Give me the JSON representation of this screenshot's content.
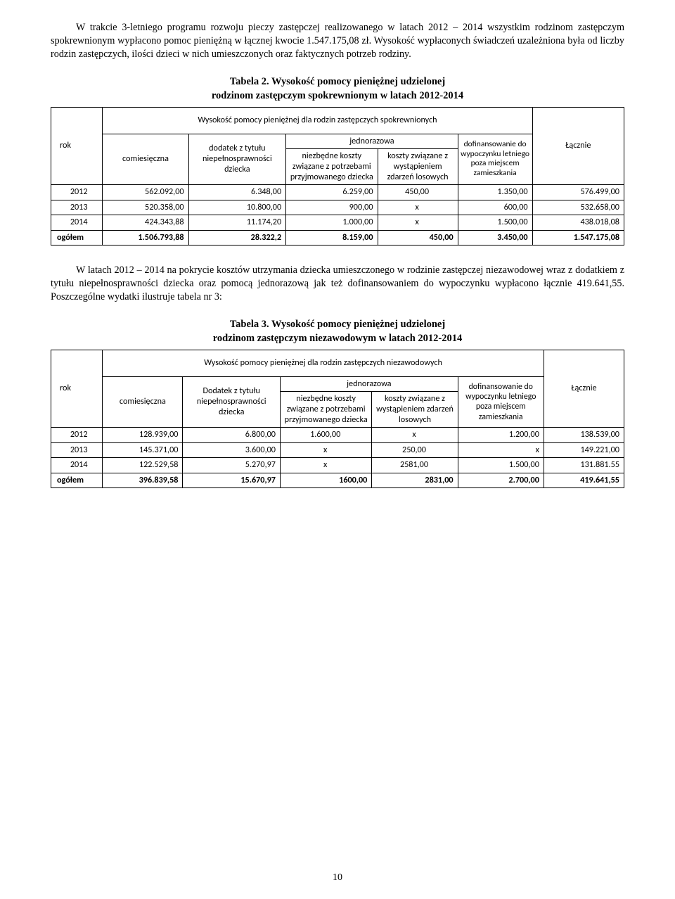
{
  "para1": "W trakcie 3-letniego programu rozwoju pieczy zastępczej realizowanego w latach 2012 – 2014 wszystkim rodzinom zastępczym spokrewnionym wypłacono pomoc pieniężną w łącznej kwocie 1.547.175,08 zł. Wysokość wypłaconych świadczeń uzależniona była od liczby rodzin zastępczych, ilości dzieci w nich umieszczonych oraz faktycznych potrzeb rodziny.",
  "table2_title_l1": "Tabela 2. Wysokość pomocy pieniężnej udzielonej",
  "table2_title_l2": "rodzinom zastępczym spokrewnionym w latach 2012-2014",
  "t2_header_span": "Wysokość pomocy pieniężnej dla rodzin zastępczych spokrewnionych",
  "col_rok": "rok",
  "t2_col_comies": "comiesięczna",
  "t2_col_dodatek": "dodatek z tytułu niepełnosprawności dziecka",
  "t2_col_jednor": "jednorazowa",
  "t2_col_niezb": "niezbędne koszty związane z potrzebami przyjmowanego dziecka",
  "t2_col_koszty": "koszty związane z wystąpieniem zdarzeń losowych",
  "t2_col_dofin": "dofinansowanie do wypoczynku letniego poza miejscem zamieszkania",
  "col_lacznie": "Łącznie",
  "t2_rows": [
    {
      "rok": "2012",
      "c1": "562.092,00",
      "c2": "6.348,00",
      "c3": "6.259,00",
      "c4": "450,00",
      "c5": "1.350,00",
      "c6": "576.499,00"
    },
    {
      "rok": "2013",
      "c1": "520.358,00",
      "c2": "10.800,00",
      "c3": "900,00",
      "c4": "x",
      "c5": "600,00",
      "c6": "532.658,00"
    },
    {
      "rok": "2014",
      "c1": "424.343,88",
      "c2": "11.174,20",
      "c3": "1.000,00",
      "c4": "x",
      "c5": "1.500,00",
      "c6": "438.018,08"
    }
  ],
  "t2_total": {
    "rok": "ogółem",
    "c1": "1.506.793,88",
    "c2": "28.322,2",
    "c3": "8.159,00",
    "c4": "450,00",
    "c5": "3.450,00",
    "c6": "1.547.175,08"
  },
  "para2": "W latach 2012 – 2014 na pokrycie kosztów utrzymania dziecka umieszczonego w rodzinie zastępczej niezawodowej wraz z dodatkiem z tytułu niepełnosprawności dziecka oraz pomocą jednorazową jak też dofinansowaniem do wypoczynku wypłacono łącznie 419.641,55. Poszczególne wydatki ilustruje tabela nr 3:",
  "table3_title_l1": "Tabela 3. Wysokość pomocy pieniężnej udzielonej",
  "table3_title_l2": "rodzinom zastępczym niezawodowym w latach 2012-2014",
  "t3_header_span": "Wysokość pomocy pieniężnej dla rodzin zastępczych niezawodowych",
  "t3_col_dodatek": "Dodatek z tytułu niepełnosprawności dziecka",
  "t3_col_niezb": "niezbędne koszty związane z potrzebami przyjmowanego dziecka",
  "t3_col_koszty": "koszty związane z wystąpieniem zdarzeń losowych",
  "t3_col_dofin": "dofinansowanie do wypoczynku letniego poza miejscem zamieszkania",
  "t3_rows": [
    {
      "rok": "2012",
      "c1": "128.939,00",
      "c2": "6.800,00",
      "c3": "1.600,00",
      "c4": "x",
      "c5": "1.200,00",
      "c6": "138.539,00"
    },
    {
      "rok": "2013",
      "c1": "145.371,00",
      "c2": "3.600,00",
      "c3": "x",
      "c4": "250,00",
      "c5": "x",
      "c6": "149.221,00"
    },
    {
      "rok": "2014",
      "c1": "122.529,58",
      "c2": "5.270,97",
      "c3": "x",
      "c4": "2581,00",
      "c5": "1.500,00",
      "c6": "131.881.55"
    }
  ],
  "t3_total": {
    "rok": "ogółem",
    "c1": "396.839,58",
    "c2": "15.670,97",
    "c3": "1600,00",
    "c4": "2831,00",
    "c5": "2.700,00",
    "c6": "419.641,55"
  },
  "page_number": "10"
}
